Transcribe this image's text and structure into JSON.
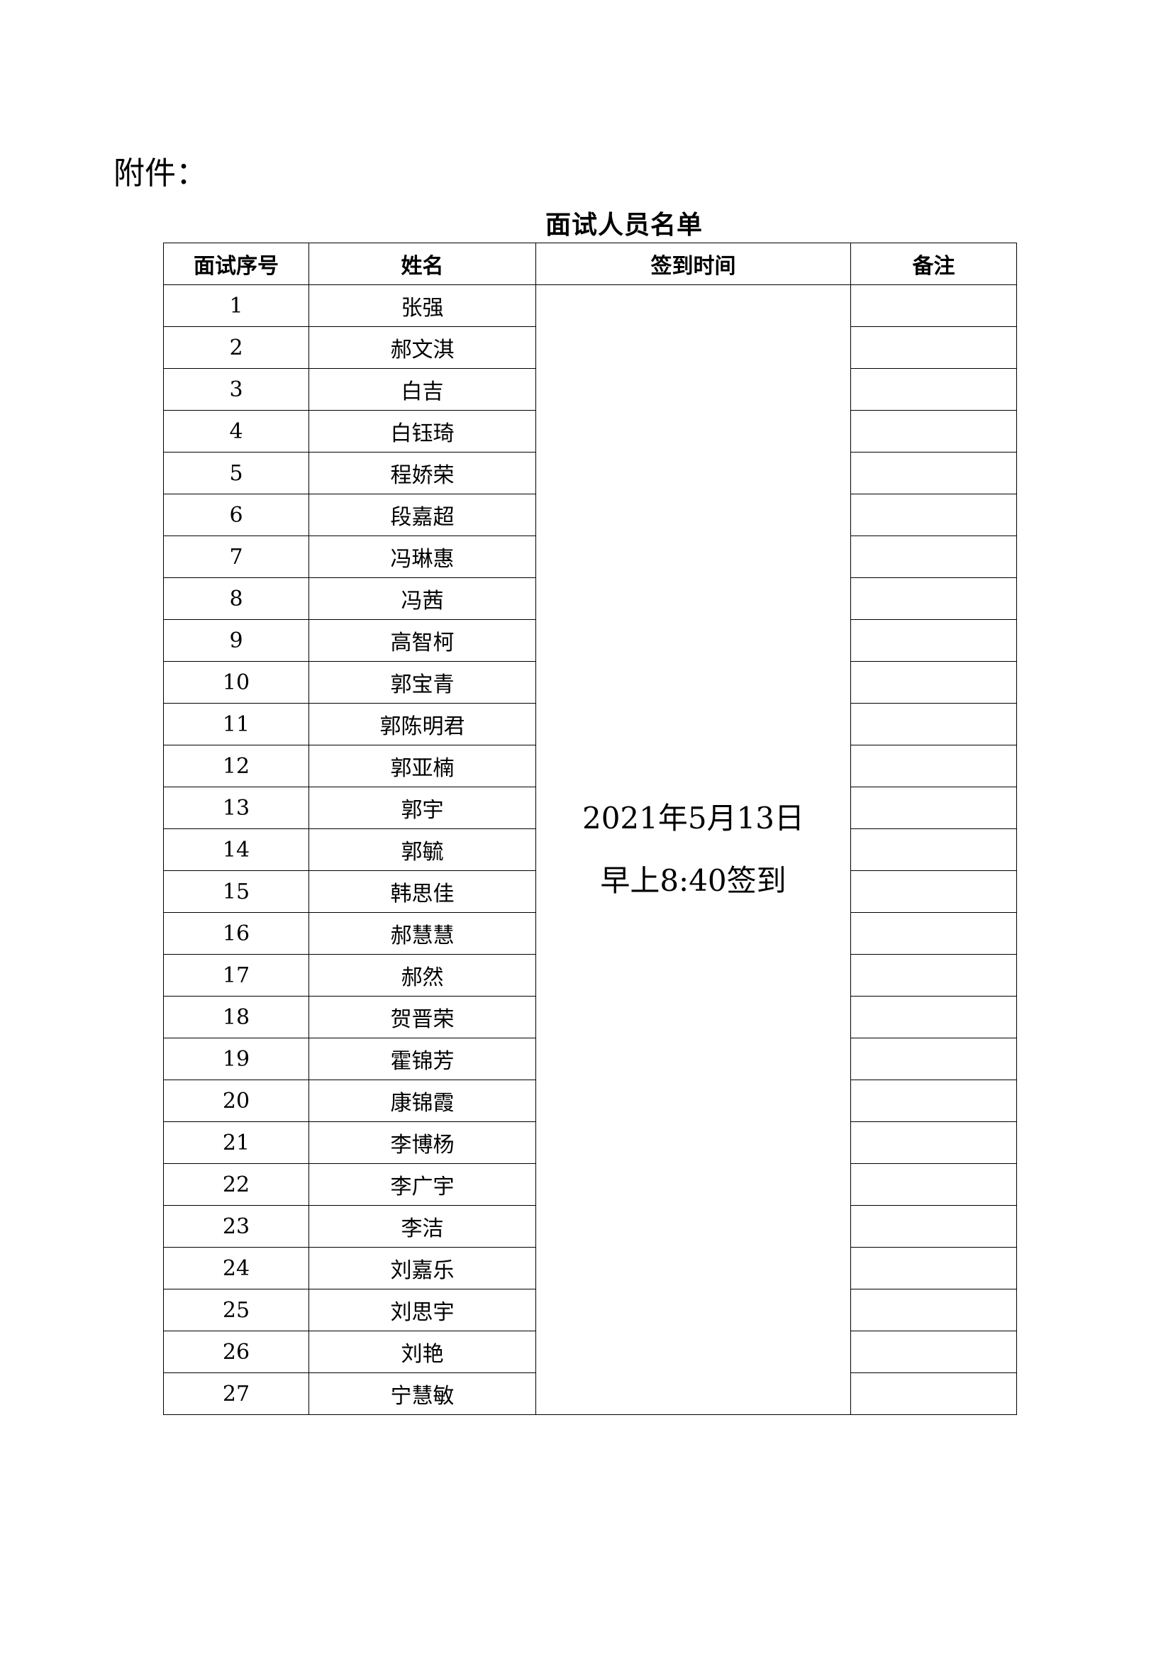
{
  "attachment_label": "附件：",
  "table_title": "面试人员名单",
  "headers": [
    "面试序号",
    "姓名",
    "签到时间",
    "备注"
  ],
  "sign_in_time": {
    "line1": "2021年5月13日",
    "line2": "早上8:40签到"
  },
  "rows": [
    {
      "no": "1",
      "name": "张强"
    },
    {
      "no": "2",
      "name": "郝文淇"
    },
    {
      "no": "3",
      "name": "白吉"
    },
    {
      "no": "4",
      "name": "白钰琦"
    },
    {
      "no": "5",
      "name": "程娇荣"
    },
    {
      "no": "6",
      "name": "段嘉超"
    },
    {
      "no": "7",
      "name": "冯琳惠"
    },
    {
      "no": "8",
      "name": "冯茜"
    },
    {
      "no": "9",
      "name": "高智柯"
    },
    {
      "no": "10",
      "name": "郭宝青"
    },
    {
      "no": "11",
      "name": "郭陈明君"
    },
    {
      "no": "12",
      "name": "郭亚楠"
    },
    {
      "no": "13",
      "name": "郭宇"
    },
    {
      "no": "14",
      "name": "郭毓"
    },
    {
      "no": "15",
      "name": "韩思佳"
    },
    {
      "no": "16",
      "name": "郝慧慧"
    },
    {
      "no": "17",
      "name": "郝然"
    },
    {
      "no": "18",
      "name": "贺晋荣"
    },
    {
      "no": "19",
      "name": "霍锦芳"
    },
    {
      "no": "20",
      "name": "康锦霞"
    },
    {
      "no": "21",
      "name": "李博杨"
    },
    {
      "no": "22",
      "name": "李广宇"
    },
    {
      "no": "23",
      "name": "李洁"
    },
    {
      "no": "24",
      "name": "刘嘉乐"
    },
    {
      "no": "25",
      "name": "刘思宇"
    },
    {
      "no": "26",
      "name": "刘艳"
    },
    {
      "no": "27",
      "name": "宁慧敏"
    }
  ]
}
